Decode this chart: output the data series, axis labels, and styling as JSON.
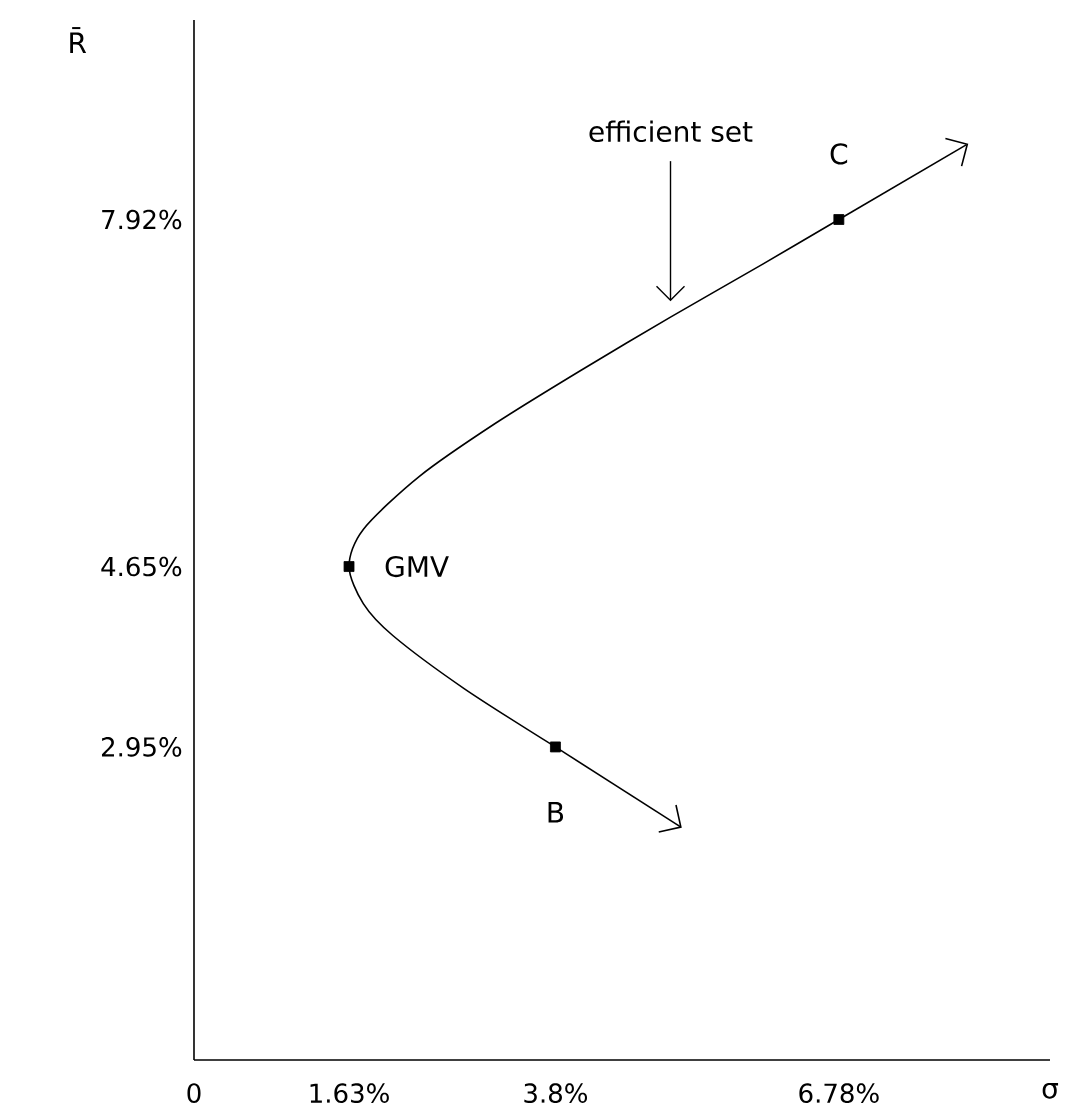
{
  "chart_data": {
    "type": "scatter",
    "xlabel": "σ",
    "ylabel": "R̄",
    "xlim": [
      0,
      9
    ],
    "ylim": [
      0,
      9.8
    ],
    "xticks": [
      0,
      {
        "value": 1.63,
        "label": "1.63%"
      },
      {
        "value": 3.8,
        "label": "3.8%"
      },
      {
        "value": 6.78,
        "label": "6.78%"
      }
    ],
    "yticks": [
      {
        "value": 2.95,
        "label": "2.95%"
      },
      {
        "value": 4.65,
        "label": "4.65%"
      },
      {
        "value": 7.92,
        "label": "7.92%"
      }
    ],
    "series": [
      {
        "type": "line",
        "color": "#000000",
        "marker": "none",
        "line_style": "solid",
        "x": [
          3.8,
          2.84,
          2.09,
          1.78,
          1.63,
          1.78,
          2.37,
          3.17,
          4.07,
          5.01,
          5.98,
          6.78
        ],
        "values": [
          2.95,
          3.5,
          4.0,
          4.3,
          4.65,
          5.0,
          5.5,
          6.0,
          6.5,
          7.0,
          7.5,
          7.92
        ]
      },
      {
        "color": "#000000",
        "marker": "square",
        "x": [
          1.63,
          3.8,
          6.78
        ],
        "values": [
          4.65,
          2.95,
          7.92
        ]
      }
    ],
    "annotations": [
      {
        "text": "efficient set",
        "x": 5.01,
        "y": 7.0
      },
      {
        "text": "GMV",
        "x": 1.63,
        "y": 4.65
      },
      {
        "text": "B",
        "x": 3.8,
        "y": 2.95
      },
      {
        "text": "C",
        "x": 6.78,
        "y": 7.92
      }
    ]
  }
}
